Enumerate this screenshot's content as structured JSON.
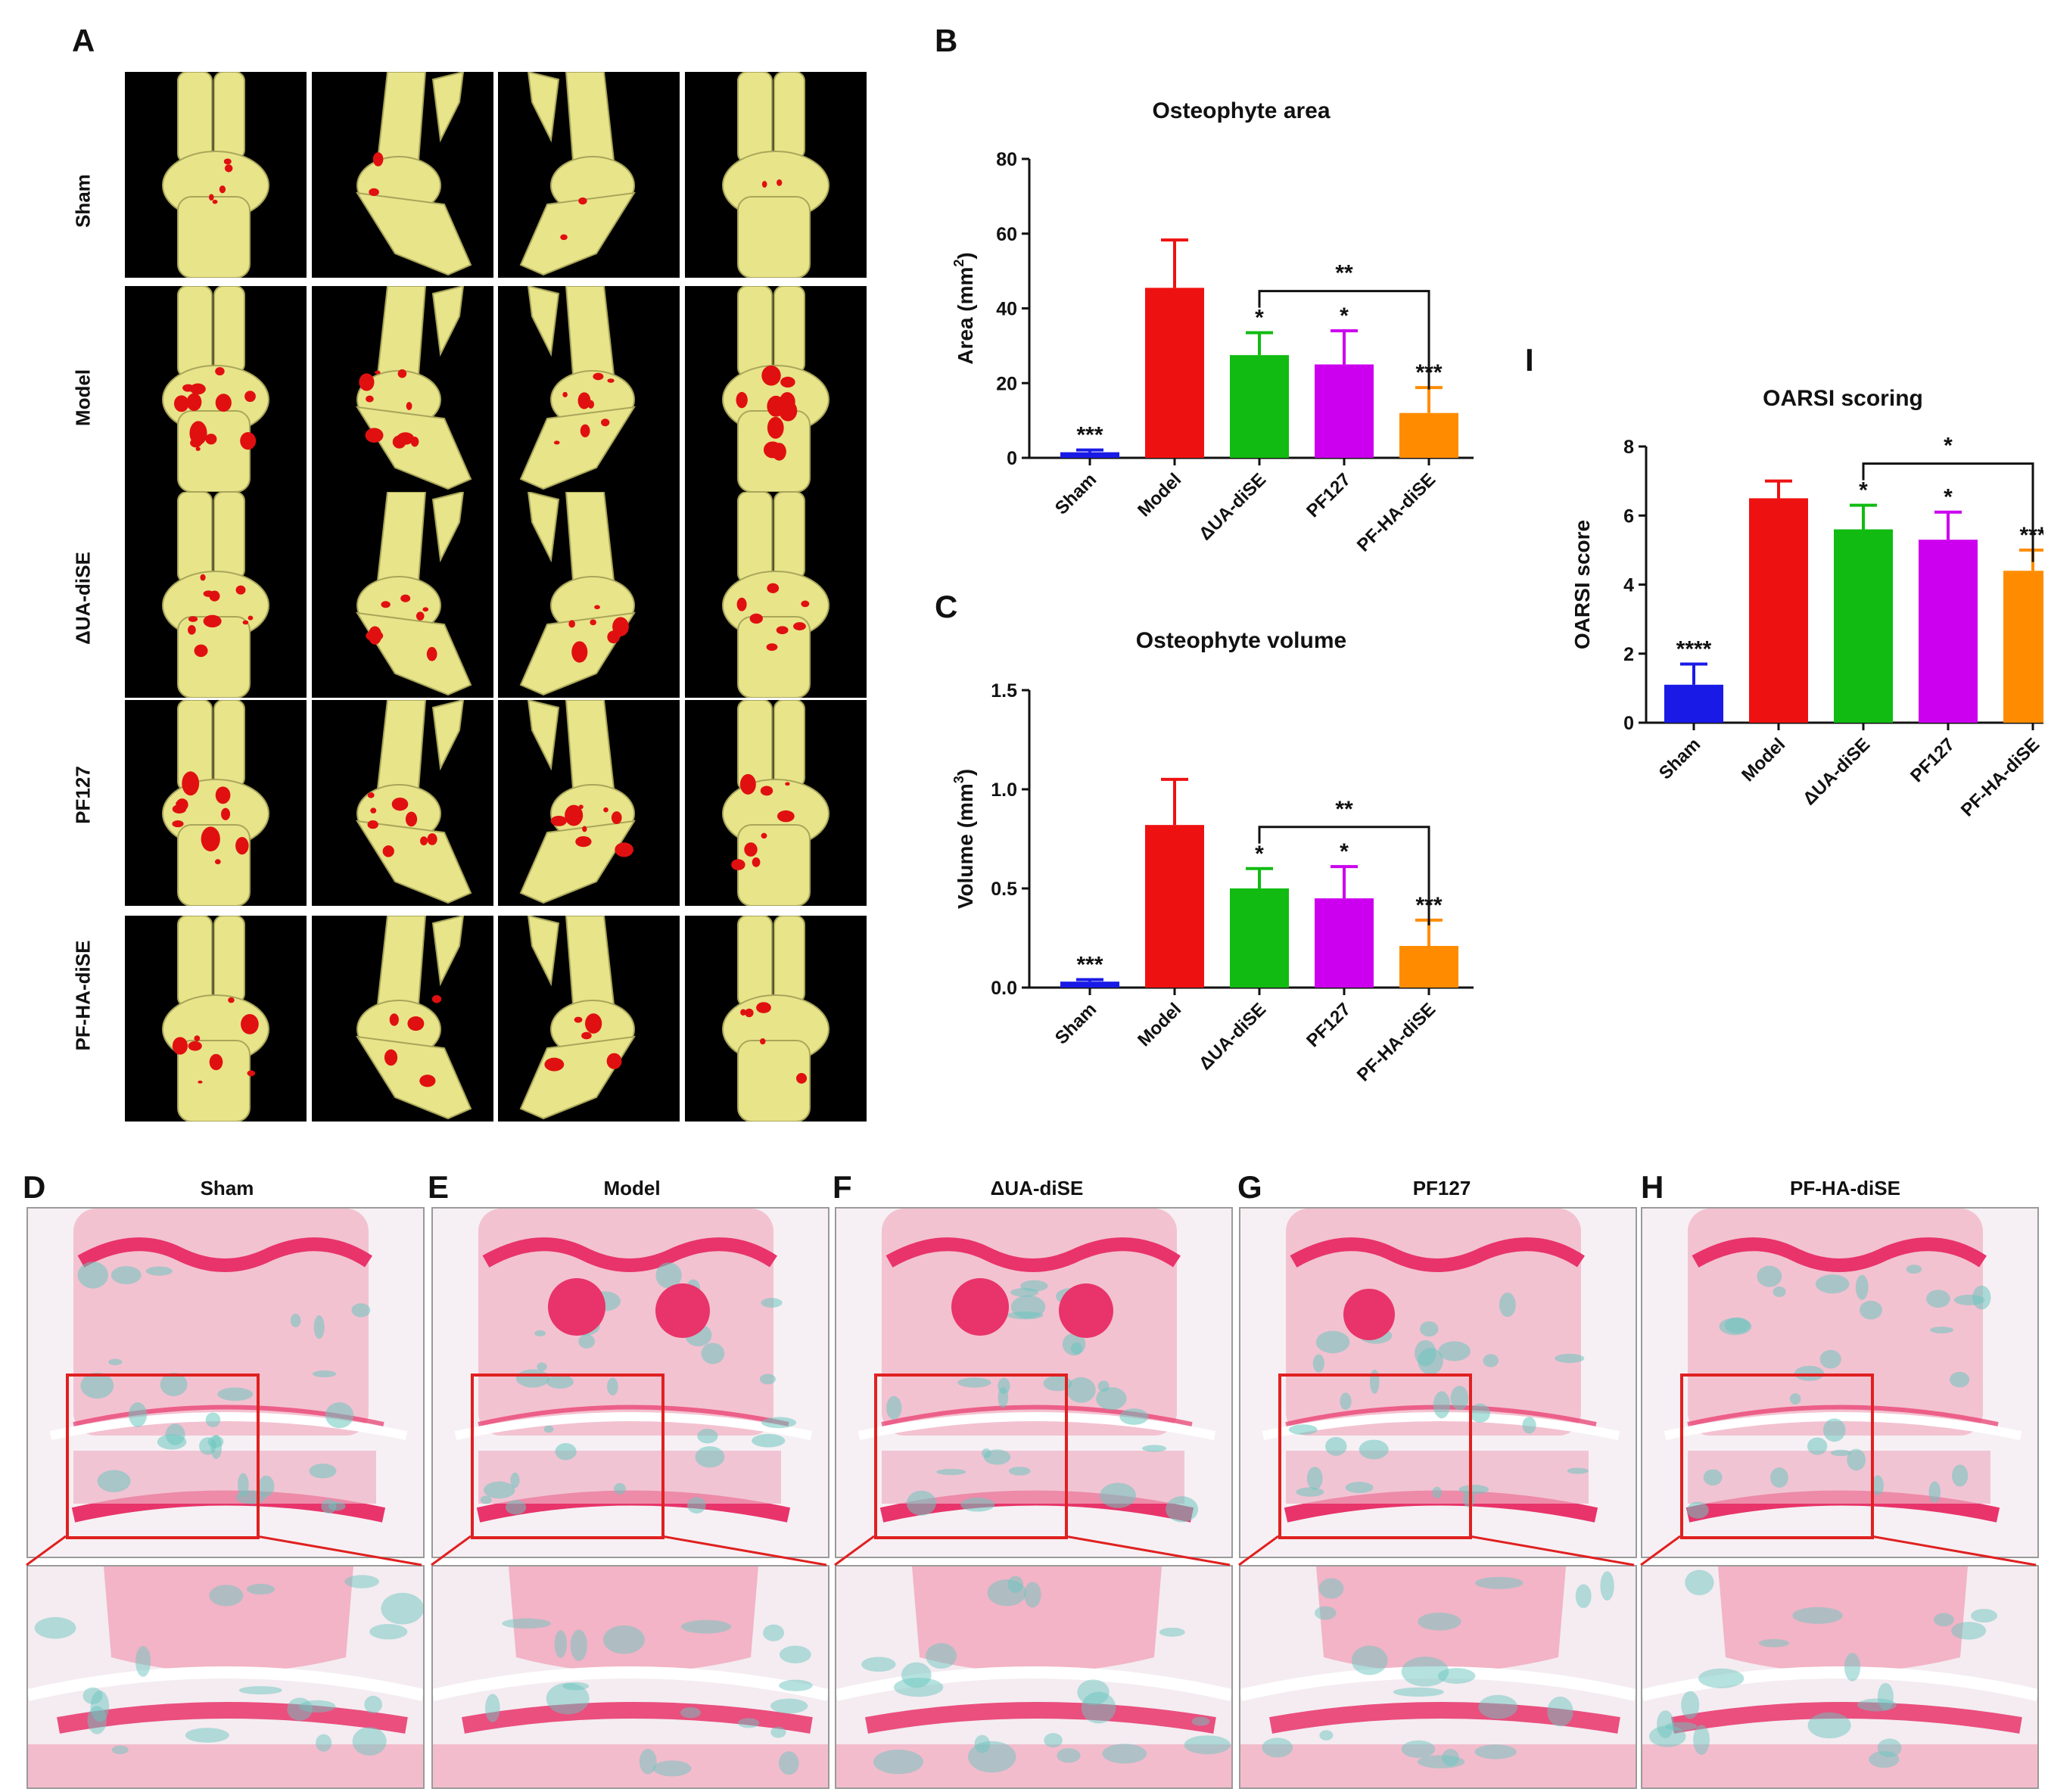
{
  "panels": {
    "A": "A",
    "B": "B",
    "C": "C",
    "D": "D",
    "E": "E",
    "F": "F",
    "G": "G",
    "H": "H",
    "I": "I"
  },
  "groups": [
    "Sham",
    "Model",
    "ΔUA-diSE",
    "PF127",
    "PF-HA-diSE"
  ],
  "colors": {
    "bone": "#e8e48a",
    "osteophyte": "#e01010",
    "sham": "#1a1ae6",
    "model": "#ee1111",
    "ua": "#11bb11",
    "pf127": "#cc00ee",
    "pfha": "#ff8c00",
    "cartilage": "#e8346a",
    "fast_green": "#6cc6c0",
    "zoom_box": "#e02020"
  },
  "chart_data": [
    {
      "id": "B",
      "type": "bar",
      "title": "Osteophyte area",
      "ylabel_main": "Area (mm",
      "ylabel_sup": "2",
      "ylabel_tail": ")",
      "categories": [
        "Sham",
        "Model",
        "ΔUA-diSE",
        "PF127",
        "PF-HA-diSE"
      ],
      "values": [
        1.5,
        45.5,
        27.5,
        25.0,
        12.0
      ],
      "errors": [
        0.6,
        12.8,
        6.0,
        9.0,
        6.8
      ],
      "ylim": [
        0,
        80
      ],
      "yticks": [
        0,
        20,
        40,
        60,
        80
      ],
      "yticklabels": [
        "0",
        "20",
        "40",
        "60",
        "80"
      ],
      "significance": [
        "***",
        "",
        "*",
        "*",
        "***"
      ],
      "bracket": {
        "from": 2,
        "to": 4,
        "label": "**"
      }
    },
    {
      "id": "C",
      "type": "bar",
      "title": "Osteophyte volume",
      "ylabel_main": "Volume (mm",
      "ylabel_sup": "3",
      "ylabel_tail": ")",
      "categories": [
        "Sham",
        "Model",
        "ΔUA-diSE",
        "PF127",
        "PF-HA-diSE"
      ],
      "values": [
        0.03,
        0.82,
        0.5,
        0.45,
        0.21
      ],
      "errors": [
        0.01,
        0.23,
        0.1,
        0.16,
        0.13
      ],
      "ylim": [
        0,
        1.5
      ],
      "yticks": [
        0,
        0.5,
        1.0,
        1.5
      ],
      "yticklabels": [
        "0.0",
        "0.5",
        "1.0",
        "1.5"
      ],
      "significance": [
        "***",
        "",
        "*",
        "*",
        "***"
      ],
      "bracket": {
        "from": 2,
        "to": 4,
        "label": "**"
      }
    },
    {
      "id": "I",
      "type": "bar",
      "title": "OARSI scoring",
      "ylabel_main": "OARSI score",
      "ylabel_sup": "",
      "ylabel_tail": "",
      "categories": [
        "Sham",
        "Model",
        "ΔUA-diSE",
        "PF127",
        "PF-HA-diSE"
      ],
      "values": [
        1.1,
        6.5,
        5.6,
        5.3,
        4.4
      ],
      "errors": [
        0.6,
        0.5,
        0.7,
        0.8,
        0.6
      ],
      "ylim": [
        0,
        8
      ],
      "yticks": [
        0,
        2,
        4,
        6,
        8
      ],
      "yticklabels": [
        "0",
        "2",
        "4",
        "6",
        "8"
      ],
      "significance": [
        "****",
        "",
        "*",
        "*",
        "***"
      ],
      "bracket": {
        "from": 2,
        "to": 4,
        "label": "*"
      }
    }
  ]
}
